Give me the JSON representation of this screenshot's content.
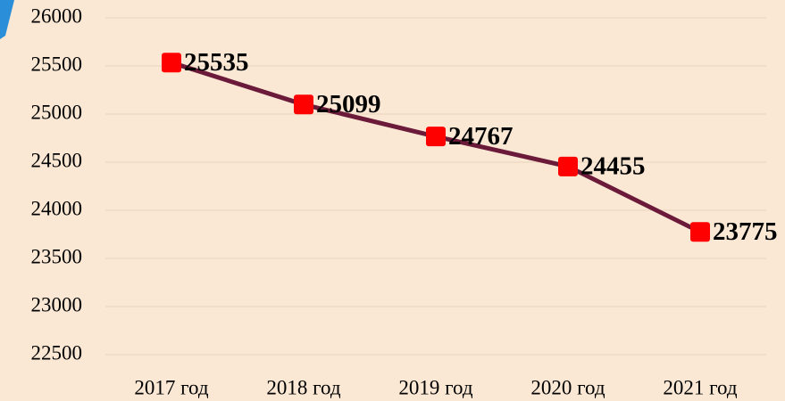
{
  "chart_data": {
    "type": "line",
    "categories": [
      "2017 год",
      "2018 год",
      "2019 год",
      "2020 год",
      "2021 год"
    ],
    "values": [
      25535,
      25099,
      24767,
      24455,
      23775
    ],
    "color": "#6b1a3a",
    "marker_color": "#ff0000",
    "ylim": [
      22500,
      26000
    ],
    "yticks": [
      22500,
      23000,
      23500,
      24000,
      24500,
      25000,
      25500,
      26000
    ],
    "grid": true
  }
}
